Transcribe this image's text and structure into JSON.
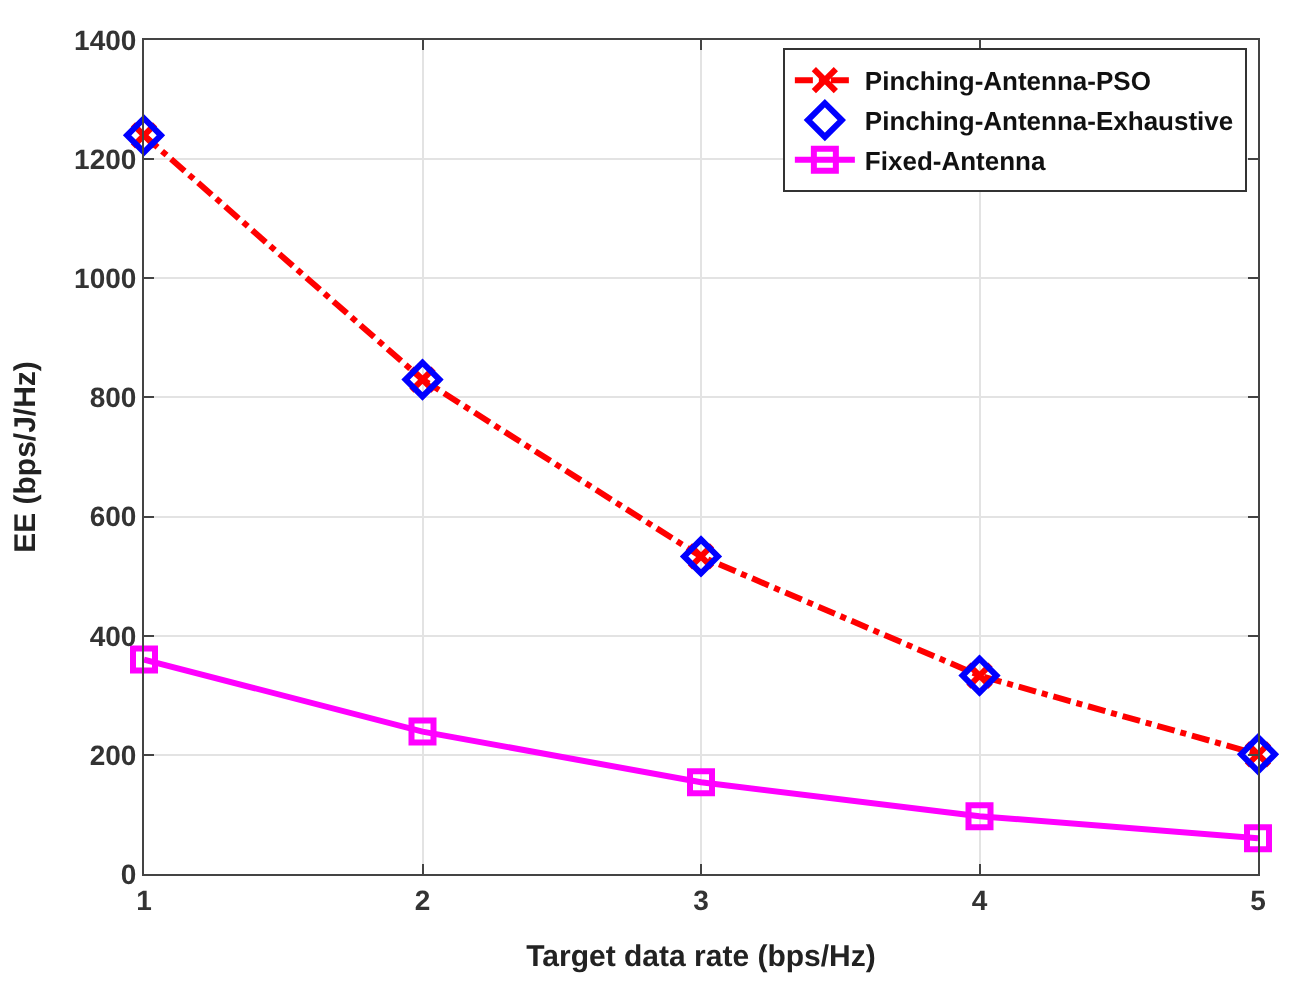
{
  "chart_data": {
    "type": "line",
    "xlabel": "Target data rate (bps/Hz)",
    "ylabel": "EE (bps/J/Hz)",
    "x": [
      1,
      2,
      3,
      4,
      5
    ],
    "xlim": [
      1,
      5
    ],
    "xticks": [
      1,
      2,
      3,
      4,
      5
    ],
    "ylim": [
      0,
      1400
    ],
    "yticks": [
      0,
      200,
      400,
      600,
      800,
      1000,
      1200,
      1400
    ],
    "grid": true,
    "legend": "top right",
    "series": [
      {
        "name": "Pinching-Antenna-PSO",
        "color": "#ff0000",
        "marker": "cross",
        "line_style": "dashdot",
        "values": [
          1240,
          830,
          533,
          333,
          201
        ]
      },
      {
        "name": "Pinching-Antenna-Exhaustive",
        "color": "#0000ff",
        "type": "scatter",
        "marker": "diamond",
        "values": [
          1240,
          830,
          533,
          333,
          201
        ]
      },
      {
        "name": "Fixed-Antenna",
        "color": "#ff00ff",
        "marker": "square",
        "line_style": "solid",
        "values": [
          360,
          239,
          154,
          97,
          60
        ]
      }
    ]
  }
}
